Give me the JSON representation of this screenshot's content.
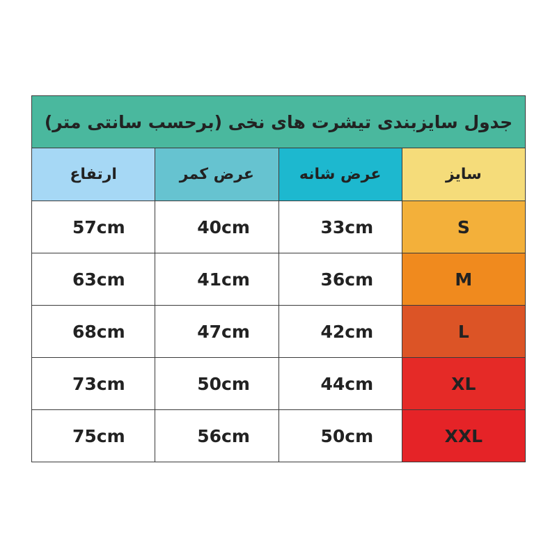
{
  "title": "جدول سایزبندی تیشرت های نخی (برحسب سانتی متر)",
  "colors": {
    "title_bg": "#4ab89e",
    "header_bg": [
      "#a6d8f5",
      "#66c3d0",
      "#1db8cf",
      "#f5dc7a"
    ]
  },
  "headers": [
    "ارتفاع",
    "عرض کمر",
    "عرض شانه",
    "سایز"
  ],
  "rows": [
    {
      "height": "57cm",
      "waist": "40cm",
      "shoulder": "33cm",
      "size": "S",
      "color": "#f3b03a"
    },
    {
      "height": "63cm",
      "waist": "41cm",
      "shoulder": "36cm",
      "size": "M",
      "color": "#f08a1e"
    },
    {
      "height": "68cm",
      "waist": "47cm",
      "shoulder": "42cm",
      "size": "L",
      "color": "#dc5426"
    },
    {
      "height": "73cm",
      "waist": "50cm",
      "shoulder": "44cm",
      "size": "XL",
      "color": "#e52a27"
    },
    {
      "height": "75cm",
      "waist": "56cm",
      "shoulder": "50cm",
      "size": "XXL",
      "color": "#e52327"
    }
  ]
}
